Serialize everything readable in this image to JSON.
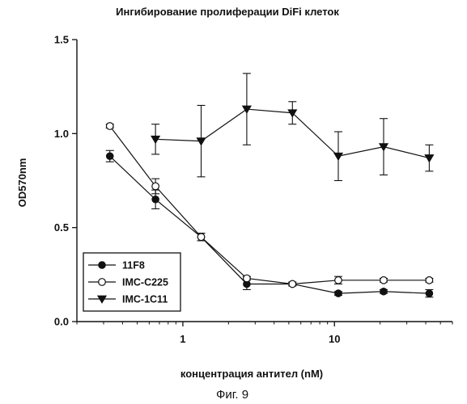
{
  "chart_data": {
    "type": "line",
    "title": "Ингибирование пролиферации DiFi клеток",
    "xlabel": "концентрация антител (nM)",
    "ylabel": "OD570nm",
    "xscale": "log",
    "xlim": [
      0.2,
      60
    ],
    "ylim": [
      0,
      1.5
    ],
    "xticks": [
      1,
      10
    ],
    "xtick_labels": [
      "1",
      "10"
    ],
    "yticks": [
      0,
      0.5,
      1.0,
      1.5
    ],
    "ytick_labels": [
      "0.0",
      "0.5",
      "1.0",
      "1.5"
    ],
    "grid": false,
    "legend_position": "bottom-left",
    "caption": "Фиг. 9",
    "series": [
      {
        "name": "11F8",
        "marker": "filled-circle",
        "color": "#111111",
        "x": [
          0.33,
          0.66,
          1.32,
          2.64,
          5.28,
          10.6,
          21.1,
          42.2
        ],
        "y": [
          0.88,
          0.65,
          0.45,
          0.2,
          0.2,
          0.15,
          0.16,
          0.15
        ],
        "err": [
          0.03,
          0.05,
          0.02,
          0.03,
          0.01,
          0.01,
          0.01,
          0.02
        ]
      },
      {
        "name": "IMC-C225",
        "marker": "open-circle",
        "color": "#111111",
        "x": [
          0.33,
          0.66,
          1.32,
          2.64,
          5.28,
          10.6,
          21.1,
          42.2
        ],
        "y": [
          1.04,
          0.72,
          0.45,
          0.23,
          0.2,
          0.22,
          0.22,
          0.22
        ],
        "err": [
          0.01,
          0.04,
          0.02,
          0.01,
          0.01,
          0.02,
          0.01,
          0.01
        ]
      },
      {
        "name": "IMC-1C11",
        "marker": "filled-triangle-down",
        "color": "#111111",
        "x": [
          0.66,
          1.32,
          2.64,
          5.28,
          10.6,
          21.1,
          42.2
        ],
        "y": [
          0.97,
          0.96,
          1.13,
          1.11,
          0.88,
          0.93,
          0.87
        ],
        "err": [
          0.08,
          0.19,
          0.19,
          0.06,
          0.13,
          0.15,
          0.07
        ]
      }
    ]
  }
}
